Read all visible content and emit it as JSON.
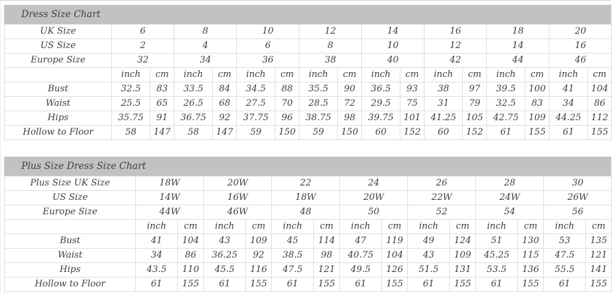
{
  "colors": {
    "title_bar_bg": "#c2c2c2",
    "cell_border": "#dfdfdf",
    "text": "#3e3e3e",
    "accent_red": "#e60000"
  },
  "units": {
    "inch": "inch",
    "cm": "cm"
  },
  "tables": [
    {
      "title": "Dress Size Chart",
      "size_rows": [
        {
          "label": "UK Size",
          "accent": true,
          "values": [
            "6",
            "8",
            "10",
            "12",
            "14",
            "16",
            "18",
            "20"
          ]
        },
        {
          "label": "US Size",
          "accent": false,
          "values": [
            "2",
            "4",
            "6",
            "8",
            "10",
            "12",
            "14",
            "16"
          ]
        },
        {
          "label": "Europe Size",
          "accent": false,
          "values": [
            "32",
            "34",
            "36",
            "38",
            "40",
            "42",
            "44",
            "46"
          ]
        }
      ],
      "measure_rows": [
        {
          "label": "Bust",
          "inch": [
            "32.5",
            "33.5",
            "34.5",
            "35.5",
            "36.5",
            "38",
            "39.5",
            "41"
          ],
          "cm": [
            "83",
            "84",
            "88",
            "90",
            "93",
            "97",
            "100",
            "104"
          ]
        },
        {
          "label": "Waist",
          "inch": [
            "25.5",
            "26.5",
            "27.5",
            "28.5",
            "29.5",
            "31",
            "32.5",
            "34"
          ],
          "cm": [
            "65",
            "68",
            "70",
            "72",
            "75",
            "79",
            "83",
            "86"
          ]
        },
        {
          "label": "Hips",
          "inch": [
            "35.75",
            "36.75",
            "37.75",
            "38.75",
            "39.75",
            "41.25",
            "42.75",
            "44.25"
          ],
          "cm": [
            "91",
            "92",
            "96",
            "98",
            "101",
            "105",
            "109",
            "112"
          ]
        },
        {
          "label": "Hollow to Floor",
          "inch": [
            "58",
            "58",
            "59",
            "59",
            "60",
            "60",
            "61",
            "61"
          ],
          "cm": [
            "147",
            "147",
            "150",
            "150",
            "152",
            "152",
            "155",
            "155"
          ]
        }
      ]
    },
    {
      "title": "Plus Size Dress Size Chart",
      "size_rows": [
        {
          "label": "Plus Size UK Size",
          "accent": true,
          "values": [
            "18W",
            "20W",
            "22",
            "24",
            "26",
            "28",
            "30"
          ]
        },
        {
          "label": "US Size",
          "accent": false,
          "values": [
            "14W",
            "16W",
            "18W",
            "20W",
            "22W",
            "24W",
            "26W"
          ]
        },
        {
          "label": "Europe Size",
          "accent": false,
          "values": [
            "44W",
            "46W",
            "48",
            "50",
            "52",
            "54",
            "56"
          ]
        }
      ],
      "measure_rows": [
        {
          "label": "Bust",
          "inch": [
            "41",
            "43",
            "45",
            "47",
            "49",
            "51",
            "53"
          ],
          "cm": [
            "104",
            "109",
            "114",
            "119",
            "124",
            "130",
            "135"
          ]
        },
        {
          "label": "Waist",
          "inch": [
            "34",
            "36.25",
            "38.5",
            "40.75",
            "43",
            "45.25",
            "47.5"
          ],
          "cm": [
            "86",
            "92",
            "98",
            "104",
            "109",
            "115",
            "121"
          ]
        },
        {
          "label": "Hips",
          "inch": [
            "43.5",
            "45.5",
            "47.5",
            "49.5",
            "51.5",
            "53.5",
            "55.5"
          ],
          "cm": [
            "110",
            "116",
            "121",
            "126",
            "131",
            "136",
            "141"
          ]
        },
        {
          "label": "Hollow to Floor",
          "inch": [
            "61",
            "61",
            "61",
            "61",
            "61",
            "61",
            "61"
          ],
          "cm": [
            "155",
            "155",
            "155",
            "155",
            "155",
            "155",
            "155"
          ]
        }
      ]
    }
  ]
}
